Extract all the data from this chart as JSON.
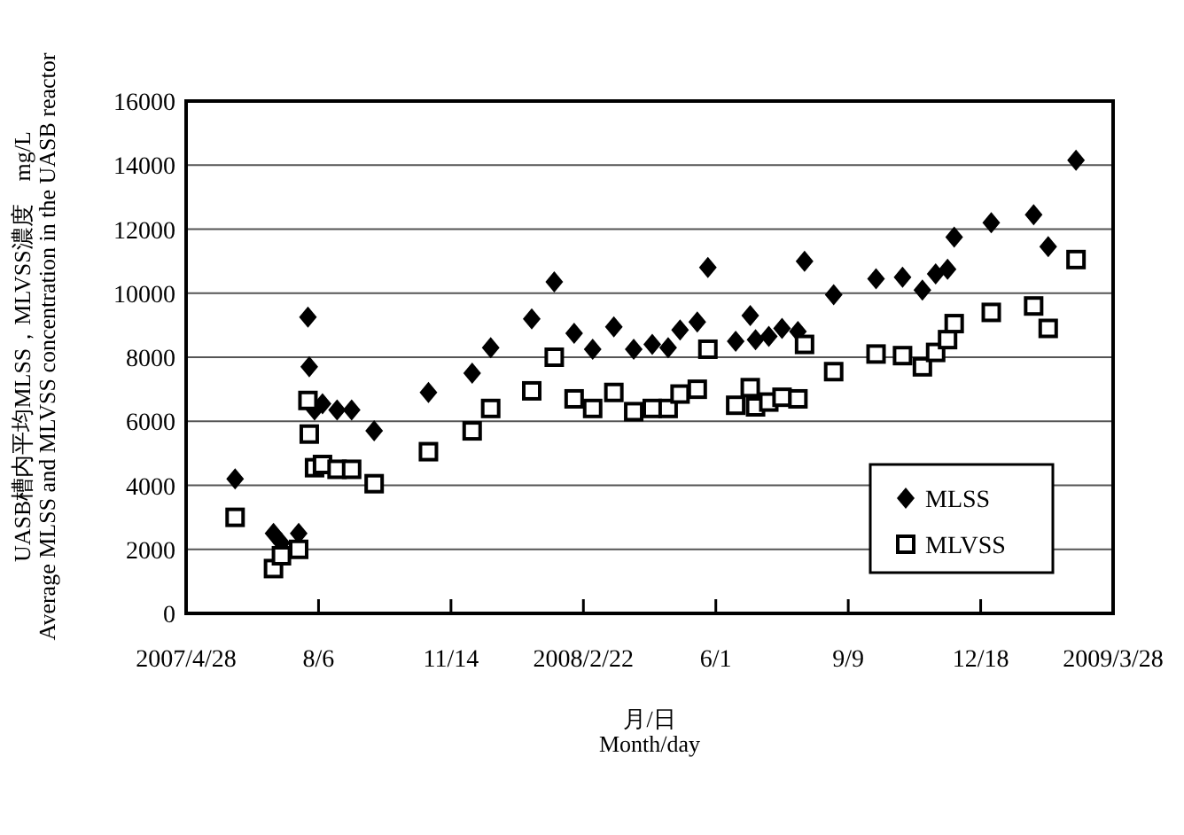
{
  "chart_data": {
    "type": "scatter",
    "xlabel": "月/日\nMonth/day",
    "ylabel": "UASB槽内平均MLSS，MLVSS濃度　mg/L\nAverage MLSS and MLVSS concentration in the UASB reactor",
    "xlim": [
      "2007-04-28",
      "2009-03-28"
    ],
    "xticks": [
      {
        "value": "2007-04-28",
        "label": "2007/4/28"
      },
      {
        "value": "2007-08-06",
        "label": "8/6"
      },
      {
        "value": "2007-11-14",
        "label": "11/14"
      },
      {
        "value": "2008-02-22",
        "label": "2008/2/22"
      },
      {
        "value": "2008-06-01",
        "label": "6/1"
      },
      {
        "value": "2008-09-09",
        "label": "9/9"
      },
      {
        "value": "2008-12-18",
        "label": "12/18"
      },
      {
        "value": "2009-03-28",
        "label": "2009/3/28"
      }
    ],
    "ylim": [
      0,
      16000
    ],
    "yticks": [
      0,
      2000,
      4000,
      6000,
      8000,
      10000,
      12000,
      14000,
      16000
    ],
    "grid": "y",
    "legend": "bottom right",
    "x": [
      "2007-06-04",
      "2007-07-03",
      "2007-07-09",
      "2007-07-22",
      "2007-07-29",
      "2007-07-30",
      "2007-08-03",
      "2007-08-09",
      "2007-08-20",
      "2007-08-31",
      "2007-09-17",
      "2007-10-28",
      "2007-11-30",
      "2007-12-14",
      "2008-01-14",
      "2008-01-31",
      "2008-02-15",
      "2008-02-29",
      "2008-03-16",
      "2008-03-31",
      "2008-04-14",
      "2008-04-26",
      "2008-05-05",
      "2008-05-18",
      "2008-05-26",
      "2008-06-16",
      "2008-06-27",
      "2008-07-01",
      "2008-07-11",
      "2008-07-21",
      "2008-08-02",
      "2008-08-07",
      "2008-08-29",
      "2008-09-30",
      "2008-10-20",
      "2008-11-04",
      "2008-11-14",
      "2008-11-23",
      "2008-11-28",
      "2008-12-26",
      "2009-01-27",
      "2009-02-07",
      "2009-02-28"
    ],
    "series": [
      {
        "name": "MLSS",
        "color": "#000000",
        "marker": "diamond",
        "values": [
          4200,
          2500,
          2200,
          2500,
          9250,
          7700,
          6350,
          6550,
          6350,
          6350,
          5700,
          6900,
          7500,
          8300,
          9200,
          10350,
          8750,
          8250,
          8950,
          8250,
          8400,
          8300,
          8850,
          9100,
          10800,
          8500,
          9300,
          8550,
          8650,
          8900,
          8800,
          11000,
          9950,
          10450,
          10500,
          10100,
          10600,
          10750,
          11750,
          12200,
          12450,
          11450,
          14150
        ]
      },
      {
        "name": "MLVSS",
        "color": "#000000",
        "marker": "square",
        "values": [
          3000,
          1400,
          1800,
          2000,
          6650,
          5600,
          4550,
          4650,
          4500,
          4500,
          4050,
          5050,
          5700,
          6400,
          6950,
          8000,
          6700,
          6400,
          6900,
          6300,
          6400,
          6400,
          6850,
          7000,
          8250,
          6500,
          7050,
          6450,
          6600,
          6750,
          6700,
          8400,
          7550,
          8100,
          8050,
          7700,
          8150,
          8550,
          9050,
          9400,
          9600,
          8900,
          11050
        ]
      }
    ]
  }
}
